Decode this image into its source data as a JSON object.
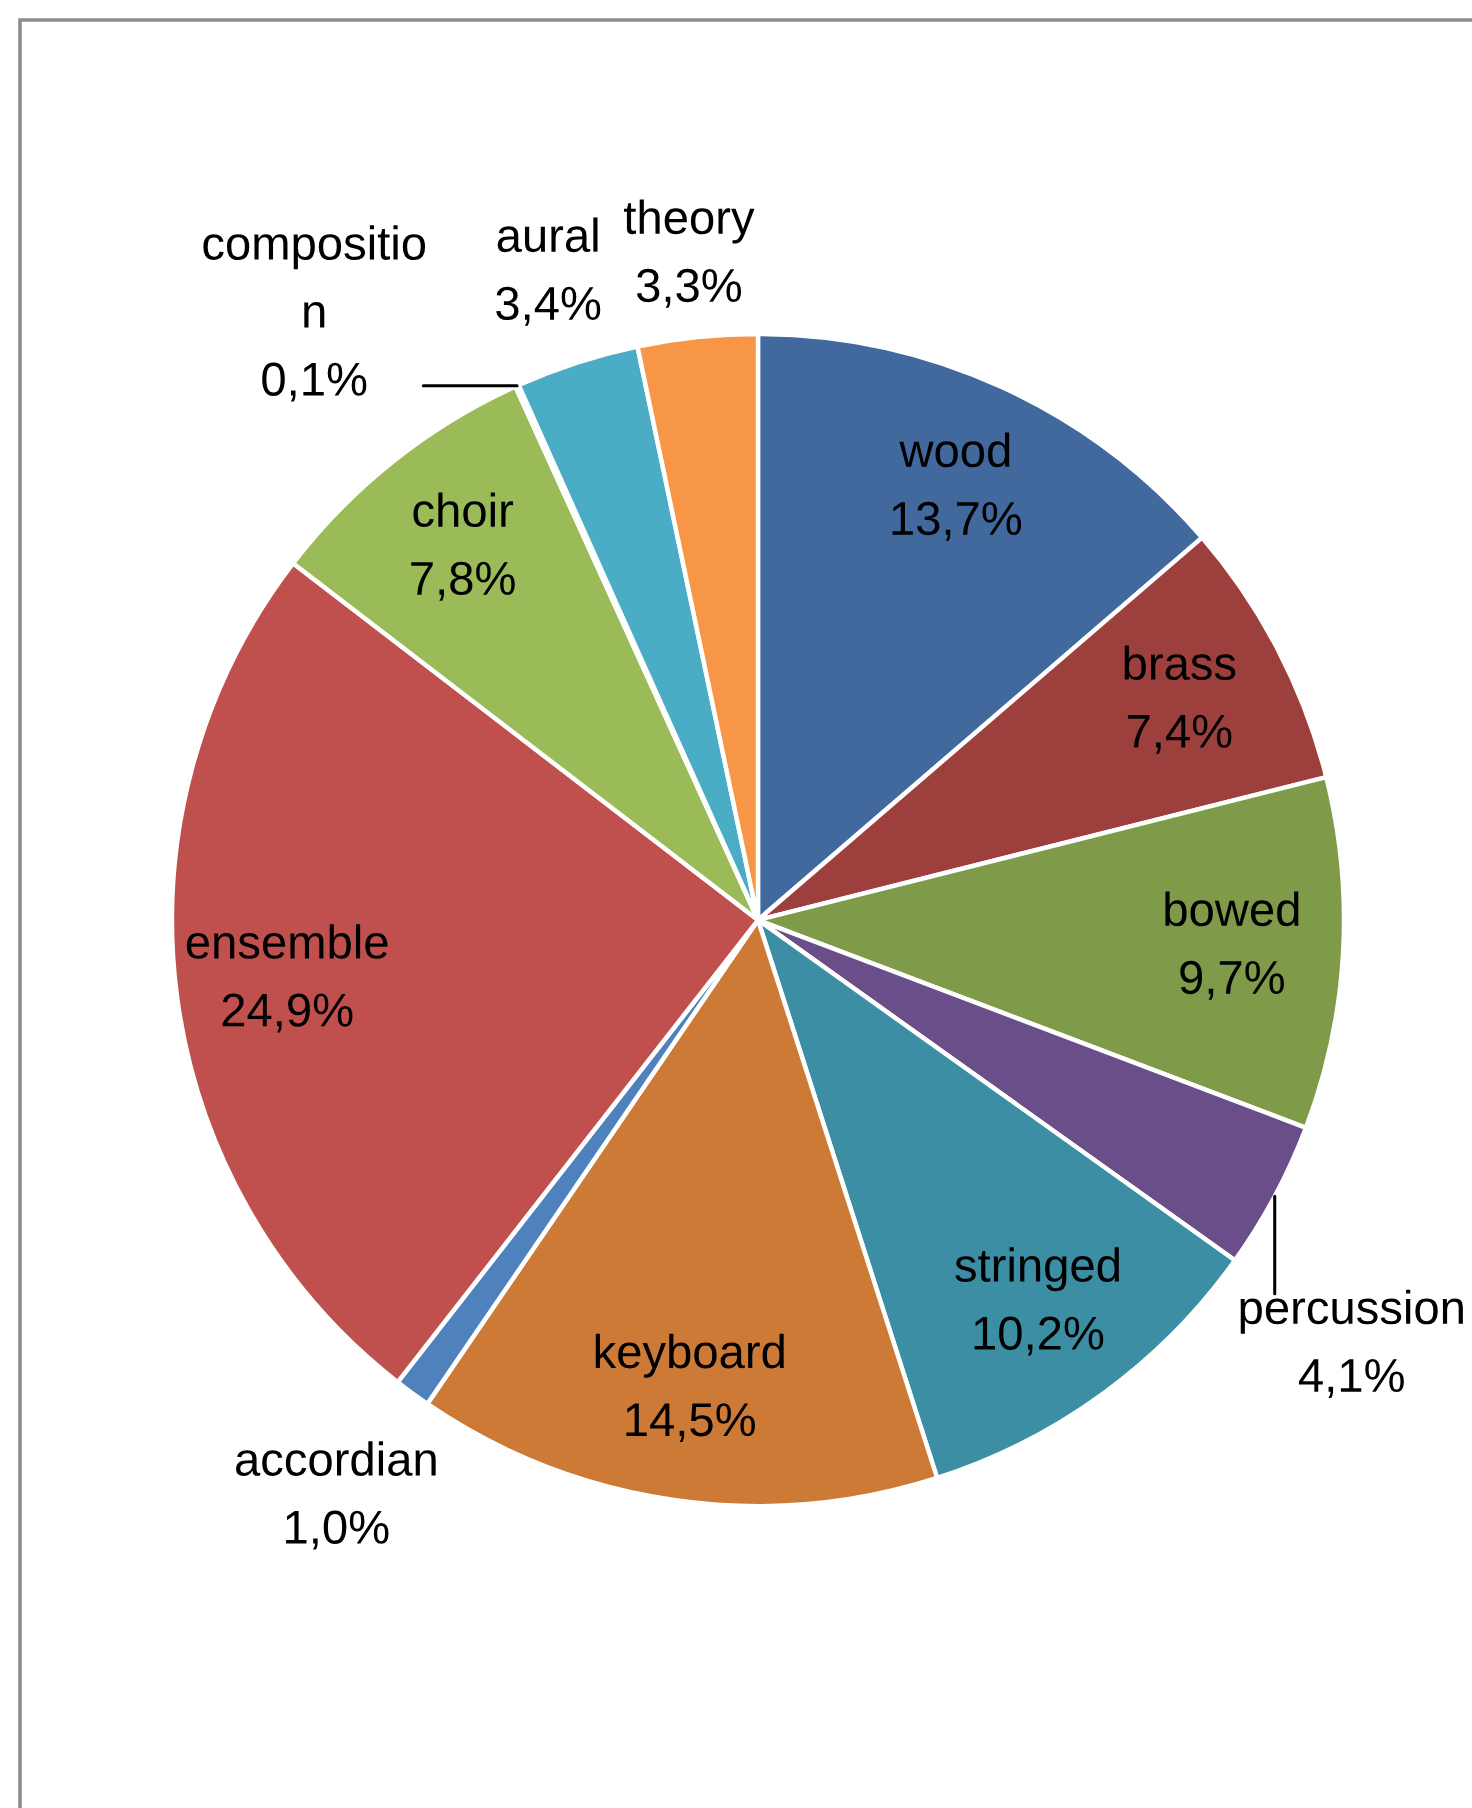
{
  "chart_data": {
    "type": "pie",
    "categories": [
      "wood",
      "brass",
      "bowed",
      "percussion",
      "stringed",
      "keyboard",
      "accordian",
      "ensemble",
      "choir",
      "compositio\nn",
      "aural",
      "theory"
    ],
    "values": [
      13.7,
      7.4,
      9.7,
      4.1,
      10.2,
      14.5,
      1.0,
      24.9,
      7.8,
      0.1,
      3.4,
      3.3
    ],
    "value_labels": [
      "13,7%",
      "7,4%",
      "9,7%",
      "4,1%",
      "10,2%",
      "14,5%",
      "1,0%",
      "24,9%",
      "7,8%",
      "0,1%",
      "3,4%",
      "3,3%"
    ],
    "colors": [
      "#41699e",
      "#9d403d",
      "#7f9a48",
      "#6a4e89",
      "#3b8ea4",
      "#cd7a37",
      "#4f81bd",
      "#c0504d",
      "#9bbb59",
      "#8064a2",
      "#4bacc6",
      "#f79646"
    ]
  }
}
